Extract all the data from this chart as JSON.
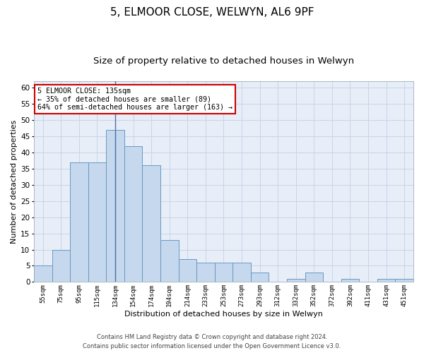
{
  "title1": "5, ELMOOR CLOSE, WELWYN, AL6 9PF",
  "title2": "Size of property relative to detached houses in Welwyn",
  "xlabel": "Distribution of detached houses by size in Welwyn",
  "ylabel": "Number of detached properties",
  "categories": [
    "55sqm",
    "75sqm",
    "95sqm",
    "115sqm",
    "134sqm",
    "154sqm",
    "174sqm",
    "194sqm",
    "214sqm",
    "233sqm",
    "253sqm",
    "273sqm",
    "293sqm",
    "312sqm",
    "332sqm",
    "352sqm",
    "372sqm",
    "392sqm",
    "411sqm",
    "431sqm",
    "451sqm"
  ],
  "values": [
    5,
    10,
    37,
    37,
    47,
    42,
    36,
    13,
    7,
    6,
    6,
    6,
    3,
    0,
    1,
    3,
    0,
    1,
    0,
    1,
    1
  ],
  "bar_color": "#c5d8ed",
  "bar_edge_color": "#6899c4",
  "vline_x_idx": 4,
  "vline_color": "#4a6fa5",
  "annotation_line1": "5 ELMOOR CLOSE: 135sqm",
  "annotation_line2": "← 35% of detached houses are smaller (89)",
  "annotation_line3": "64% of semi-detached houses are larger (163) →",
  "annotation_box_color": "#ffffff",
  "annotation_box_edge": "#cc0000",
  "ylim": [
    0,
    62
  ],
  "yticks": [
    0,
    5,
    10,
    15,
    20,
    25,
    30,
    35,
    40,
    45,
    50,
    55,
    60
  ],
  "footer1": "Contains HM Land Registry data © Crown copyright and database right 2024.",
  "footer2": "Contains public sector information licensed under the Open Government Licence v3.0.",
  "bg_color": "#ffffff",
  "plot_bg_color": "#e8eef8",
  "grid_color": "#c8d4e8",
  "title1_fontsize": 11,
  "title2_fontsize": 9.5
}
